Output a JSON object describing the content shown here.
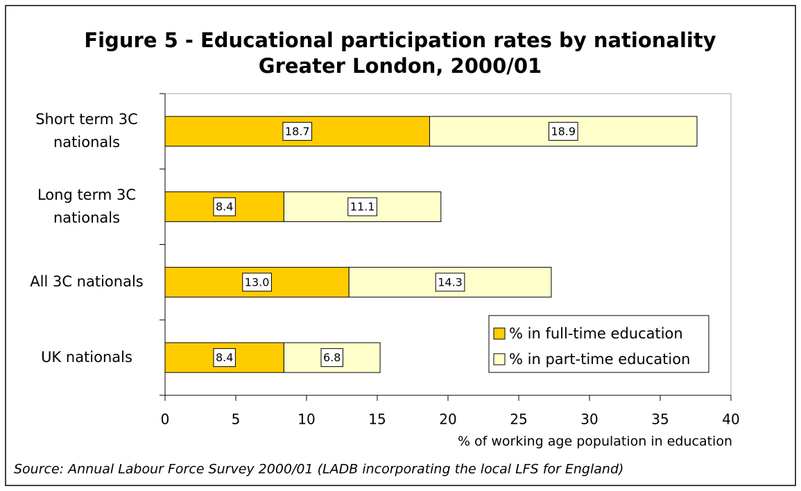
{
  "chart_data": {
    "type": "stacked_barh",
    "title": "Figure 5 - Educational participation rates by nationality",
    "subtitle": "Greater London, 2000/01",
    "categories": [
      "Short term 3C nationals",
      "Long term 3C nationals",
      "All 3C nationals",
      "UK nationals"
    ],
    "series": [
      {
        "name": "% in full-time education",
        "color": "#ffcc00",
        "values": [
          18.7,
          8.4,
          13.0,
          8.4
        ],
        "value_labels": [
          "18.7",
          "8.4",
          "13.0",
          "8.4"
        ]
      },
      {
        "name": "% in part-time education",
        "color": "#ffffcc",
        "values": [
          18.9,
          11.1,
          14.3,
          6.8
        ]
      }
    ],
    "xlim": [
      0,
      40
    ],
    "xticks": [
      0,
      5,
      10,
      15,
      20,
      25,
      30,
      35,
      40
    ],
    "xlabel": "% of working age population in education",
    "legend": "lower right",
    "source": "Source: Annual Labour Force Survey 2000/01 (LADB incorporating the local LFS for England)"
  }
}
